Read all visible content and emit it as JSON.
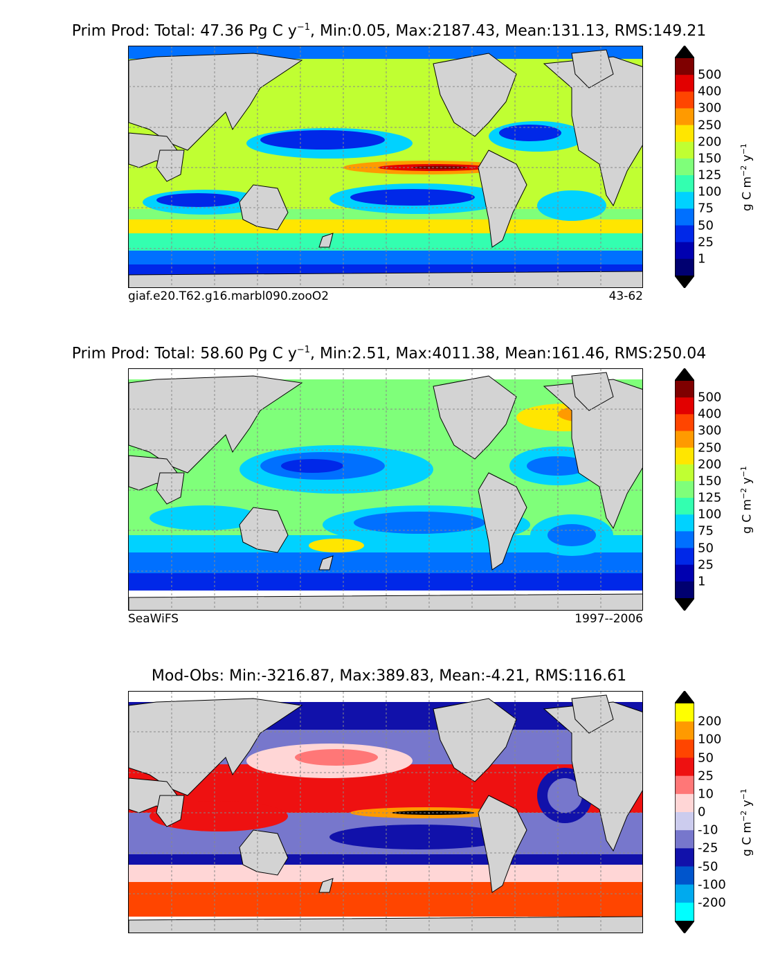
{
  "panels": [
    {
      "title_prefix": "Prim Prod: Total: 47.36 Pg C y",
      "title_exp": "−1",
      "title_suffix": ", Min:0.05, Max:2187.43, Mean:131.13, RMS:149.21",
      "caption_left": "giaf.e20.T62.g16.marbl090.zooO2",
      "caption_right": "43-62"
    },
    {
      "title_prefix": "Prim Prod: Total: 58.60 Pg C y",
      "title_exp": "−1",
      "title_suffix": ", Min:2.51, Max:4011.38, Mean:161.46, RMS:250.04",
      "caption_left": "SeaWiFS",
      "caption_right": "1997--2006"
    },
    {
      "title_prefix": "Mod-Obs: Min:-3216.87, Max:389.83, Mean:-4.21, RMS:116.61",
      "title_exp": "",
      "title_suffix": "",
      "caption_left": "",
      "caption_right": ""
    }
  ],
  "colorbars": {
    "prod": {
      "ticks": [
        "500",
        "400",
        "300",
        "250",
        "200",
        "150",
        "125",
        "100",
        "75",
        "50",
        "25",
        "1"
      ],
      "colors": [
        "#7f0000",
        "#e20000",
        "#ff4500",
        "#ff9a00",
        "#ffe600",
        "#c0ff32",
        "#7fff7a",
        "#33ffb0",
        "#00d2ff",
        "#0070ff",
        "#0028e8",
        "#0000b0",
        "#000070"
      ],
      "over_color": "#000000",
      "under_color": "#000000"
    },
    "diff": {
      "ticks": [
        "200",
        "100",
        "50",
        "25",
        "10",
        "0",
        "-10",
        "-25",
        "-50",
        "-100",
        "-200"
      ],
      "colors": [
        "#ffff00",
        "#ff9a00",
        "#ff4500",
        "#ee1111",
        "#ff7777",
        "#ffd6d6",
        "#ccccee",
        "#7777cc",
        "#1111aa",
        "#0055cc",
        "#00aaee",
        "#00ffff"
      ],
      "over_color": "#000000",
      "under_color": "#000000"
    }
  },
  "colorbar_label": {
    "pre": "g C m",
    "exp1": "−2",
    "mid": " y",
    "exp2": "−1"
  }
}
